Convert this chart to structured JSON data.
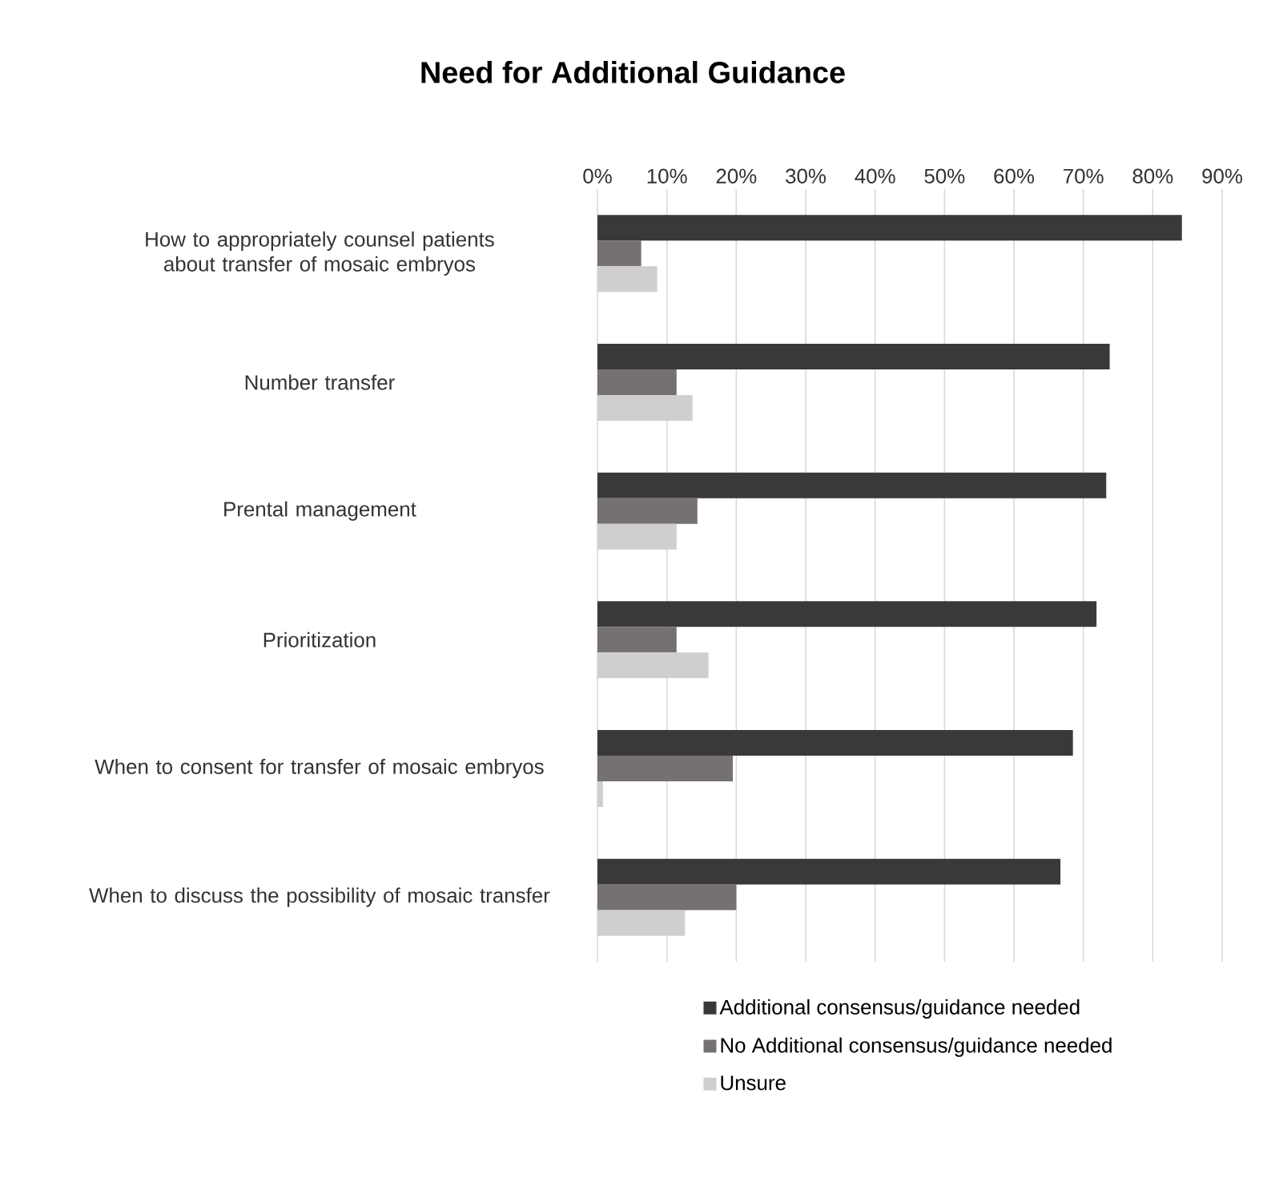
{
  "chart_data": {
    "type": "bar",
    "orientation": "horizontal",
    "title": "Need for Additional Guidance",
    "categories": [
      "How to appropriately counsel patients about transfer of mosaic embryos",
      "Number transfer",
      "Prental management",
      "Prioritization",
      "When to consent for transfer of mosaic embryos",
      "When to discuss the possibility of mosaic transfer"
    ],
    "series": [
      {
        "name": "Additional consensus/guidance needed",
        "color": "#3b3838",
        "values": [
          84.2,
          73.8,
          73.3,
          71.9,
          68.5,
          66.7
        ]
      },
      {
        "name": "No Additional consensus/guidance needed",
        "color": "#767171",
        "values": [
          6.3,
          11.4,
          14.4,
          11.4,
          19.5,
          20.0
        ]
      },
      {
        "name": "Unsure",
        "color": "#d0cece",
        "values": [
          8.6,
          13.7,
          11.4,
          16.0,
          0.8,
          12.6
        ]
      }
    ],
    "xlim": [
      0,
      90
    ],
    "xticks": [
      {
        "value": 0,
        "label": "0%"
      },
      {
        "value": 10,
        "label": "10%"
      },
      {
        "value": 20,
        "label": "20%"
      },
      {
        "value": 30,
        "label": "30%"
      },
      {
        "value": 40,
        "label": "40%"
      },
      {
        "value": 50,
        "label": "50%"
      },
      {
        "value": 60,
        "label": "60%"
      },
      {
        "value": 70,
        "label": "70%"
      },
      {
        "value": 80,
        "label": "80%"
      },
      {
        "value": 90,
        "label": "90%"
      }
    ],
    "grid": "x",
    "legend": "bottom"
  }
}
